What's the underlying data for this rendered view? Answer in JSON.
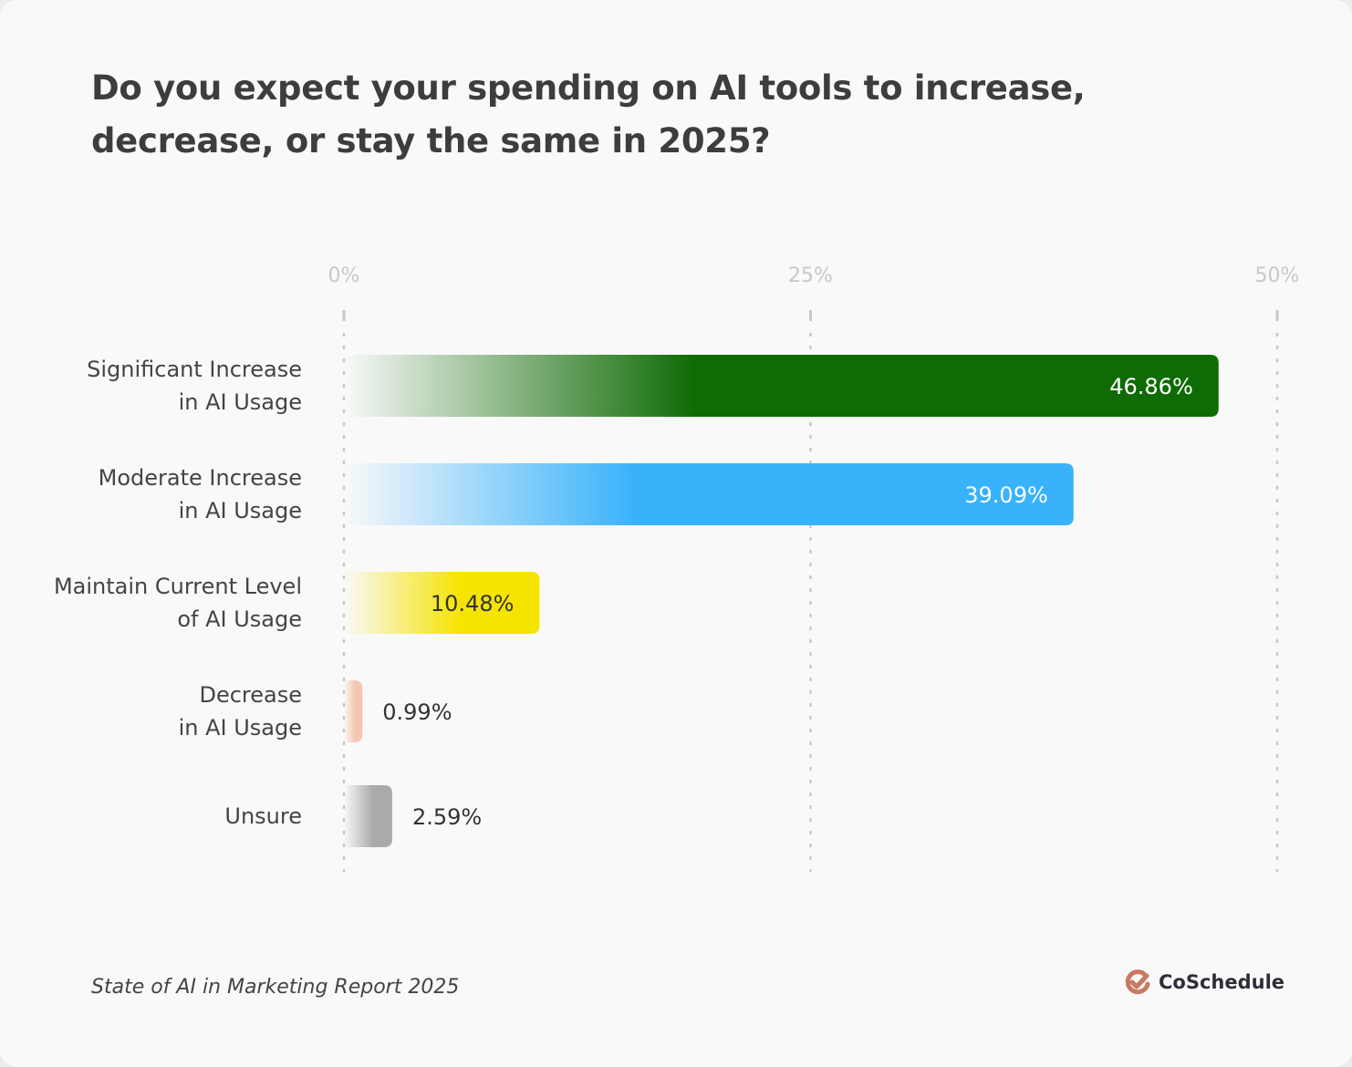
{
  "chart_data": {
    "type": "bar",
    "orientation": "horizontal",
    "title": "Do you expect your spending on AI tools to increase, decrease, or stay the same in 2025?",
    "categories": [
      "Significant Increase\nin AI Usage",
      "Moderate Increase\nin AI Usage",
      "Maintain Current Level\nof AI Usage",
      "Decrease \nin AI Usage",
      "Unsure"
    ],
    "values": [
      46.86,
      39.09,
      10.48,
      0.99,
      2.59
    ],
    "data_labels": [
      "46.86%",
      "39.09%",
      "10.48%",
      "0.99%",
      "2.59%"
    ],
    "colors": [
      "#0f6b05",
      "#38b2fb",
      "#f5e400",
      "#f3c7b0",
      "#aaaaaa"
    ],
    "xlim": [
      0,
      50
    ],
    "ticks": [
      "0%",
      "25%",
      "50%"
    ],
    "tick_values": [
      0,
      25,
      50
    ],
    "grid": true,
    "legend": "none"
  },
  "footer": {
    "source": "State of AI in Marketing Report 2025",
    "brand": "CoSchedule",
    "brand_color": "#c97a63"
  }
}
